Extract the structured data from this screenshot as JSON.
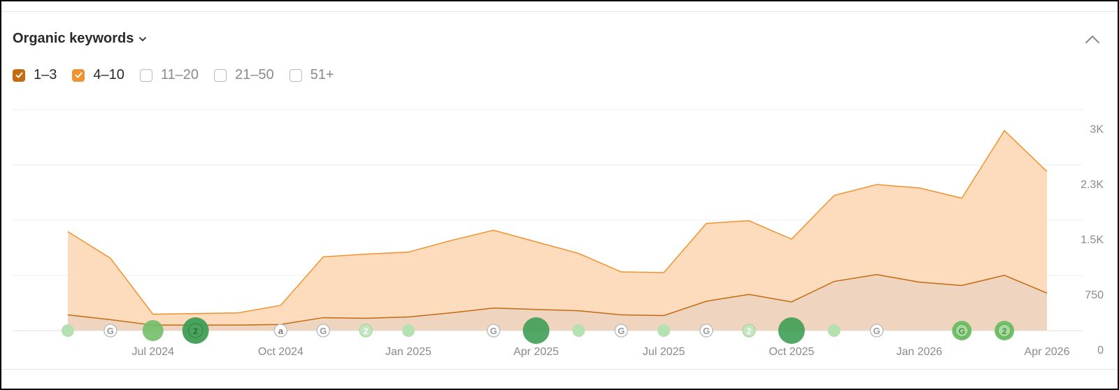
{
  "panel": {
    "title": "Organic keywords",
    "filters": [
      {
        "label": "1–3",
        "checked": true,
        "color": "#c46a10"
      },
      {
        "label": "4–10",
        "checked": true,
        "color": "#f0932e"
      },
      {
        "label": "11–20",
        "checked": false
      },
      {
        "label": "21–50",
        "checked": false
      },
      {
        "label": "51+",
        "checked": false
      }
    ]
  },
  "chart_data": {
    "type": "area",
    "stacked": true,
    "x": [
      "2024-05",
      "2024-06",
      "2024-07",
      "2024-08",
      "2024-09",
      "2024-10",
      "2024-11",
      "2024-12",
      "2025-01",
      "2025-02",
      "2025-03",
      "2025-04",
      "2025-05",
      "2025-06",
      "2025-07",
      "2025-08",
      "2025-09",
      "2025-10",
      "2025-11",
      "2025-12",
      "2026-01",
      "2026-02",
      "2026-03",
      "2026-04"
    ],
    "x_tick_labels": [
      "Jul 2024",
      "Oct 2024",
      "Jan 2025",
      "Apr 2025",
      "Jul 2025",
      "Oct 2025",
      "Jan 2026",
      "Apr 2026"
    ],
    "y_ticks": [
      "0",
      "750",
      "1.5K",
      "2.3K",
      "3K"
    ],
    "ylim": [
      0,
      3000
    ],
    "grid": true,
    "series": [
      {
        "name": "1–3",
        "color": "#c46a10",
        "fill": "#efd5c0",
        "values": [
          230,
          160,
          80,
          80,
          80,
          90,
          190,
          180,
          200,
          260,
          330,
          310,
          290,
          230,
          220,
          430,
          530,
          420,
          720,
          820,
          710,
          660,
          810,
          550
        ]
      },
      {
        "name": "4–10",
        "color": "#f0932e",
        "fill": "#fddcbe",
        "values": [
          1220,
          900,
          160,
          170,
          180,
          280,
          890,
          940,
          950,
          1060,
          1140,
          990,
          840,
          630,
          630,
          1140,
          1080,
          920,
          1260,
          1320,
          1380,
          1280,
          2120,
          1780
        ]
      }
    ],
    "annotations": [
      {
        "x": "2024-05",
        "type": "dot",
        "size": "small"
      },
      {
        "x": "2024-06",
        "type": "google",
        "label": "G"
      },
      {
        "x": "2024-07",
        "type": "dot",
        "size": "medium"
      },
      {
        "x": "2024-08",
        "type": "count",
        "label": "2",
        "size": "large"
      },
      {
        "x": "2024-10",
        "type": "amazon",
        "label": "a"
      },
      {
        "x": "2024-11",
        "type": "google",
        "label": "G"
      },
      {
        "x": "2024-12",
        "type": "count",
        "label": "2"
      },
      {
        "x": "2025-01",
        "type": "dot",
        "size": "small"
      },
      {
        "x": "2025-03",
        "type": "google",
        "label": "G"
      },
      {
        "x": "2025-04",
        "type": "dot",
        "size": "large"
      },
      {
        "x": "2025-05",
        "type": "dot",
        "size": "small"
      },
      {
        "x": "2025-06",
        "type": "google",
        "label": "G"
      },
      {
        "x": "2025-07",
        "type": "dot",
        "size": "small"
      },
      {
        "x": "2025-08",
        "type": "google",
        "label": "G"
      },
      {
        "x": "2025-09",
        "type": "count",
        "label": "2"
      },
      {
        "x": "2025-10",
        "type": "dot",
        "size": "large"
      },
      {
        "x": "2025-11",
        "type": "dot",
        "size": "small"
      },
      {
        "x": "2025-12",
        "type": "google",
        "label": "G"
      },
      {
        "x": "2026-02",
        "type": "google",
        "label": "G",
        "size": "medium"
      },
      {
        "x": "2026-03",
        "type": "count",
        "label": "2",
        "size": "medium"
      }
    ]
  }
}
